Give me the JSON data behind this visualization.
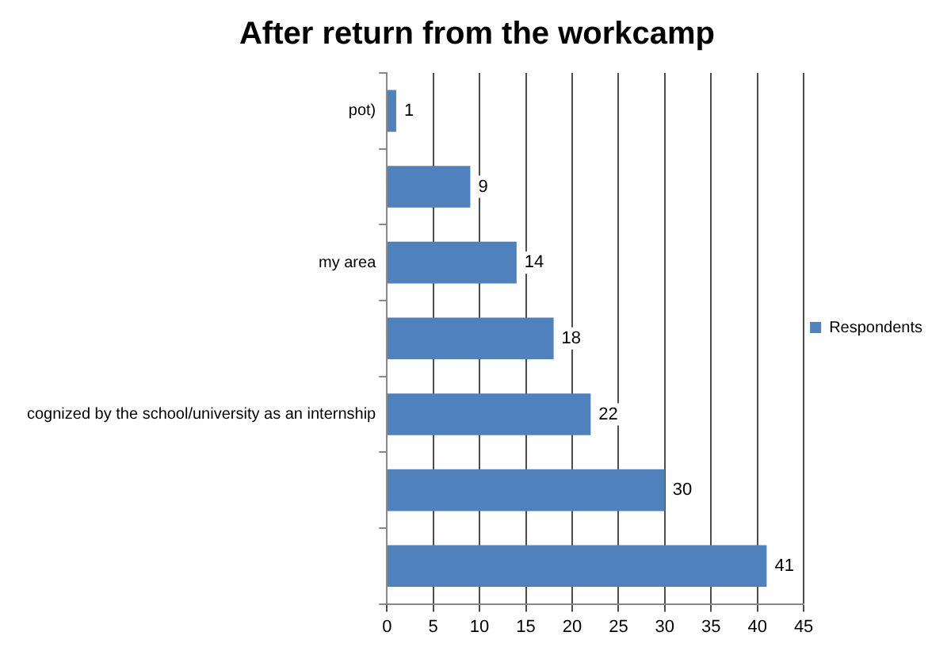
{
  "chart_data": {
    "type": "bar",
    "orientation": "horizontal",
    "title": "After return from the workcamp",
    "categories": [
      "pot)",
      null,
      "my area",
      null,
      "cognized by the school/university as an internship",
      null,
      null
    ],
    "series": [
      {
        "name": "Respondents",
        "color": "#4f81bd",
        "values": [
          1,
          9,
          14,
          18,
          22,
          30,
          41
        ]
      }
    ],
    "xlim": [
      0,
      45
    ],
    "xticks": [
      0,
      5,
      10,
      15,
      20,
      25,
      30,
      35,
      40,
      45
    ],
    "grid": "x",
    "legend": "right",
    "data_labels": true
  }
}
